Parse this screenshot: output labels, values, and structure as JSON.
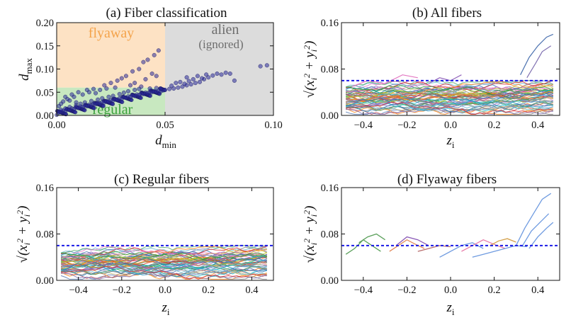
{
  "colors": {
    "flyaway_region": "#fde2c4",
    "regular_region": "#c8e8c0",
    "alien_region": "#dcdcdc",
    "flyaway_text": "#f4a34a",
    "regular_text": "#3ca03c",
    "alien_text": "#6e6e6e",
    "points": "#2a2a9a",
    "threshold_line": "#1a1ae6"
  },
  "chart_data": [
    {
      "id": "a",
      "type": "scatter",
      "title": "(a) Fiber classification",
      "xlabel": "d",
      "xlabel_sub": "min",
      "ylabel": "d",
      "ylabel_sub": "max",
      "xlim": [
        0.0,
        0.1
      ],
      "ylim": [
        0.0,
        0.2
      ],
      "xticks": [
        "0.00",
        "0.05",
        "0.10"
      ],
      "yticks": [
        "0.00",
        "0.05",
        "0.10",
        "0.15",
        "0.20"
      ],
      "regions": [
        {
          "name": "flyaway",
          "label": "flyaway",
          "x": [
            0.0,
            0.05
          ],
          "y": [
            0.06,
            0.2
          ]
        },
        {
          "name": "regular",
          "label": "regular",
          "x": [
            0.0,
            0.05
          ],
          "y": [
            0.0,
            0.06
          ]
        },
        {
          "name": "alien",
          "label": "alien",
          "sublabel": "(ignored)",
          "x": [
            0.05,
            0.1
          ],
          "y": [
            0.0,
            0.2
          ]
        }
      ],
      "points": [
        [
          0.001,
          0.006
        ],
        [
          0.002,
          0.008
        ],
        [
          0.003,
          0.01
        ],
        [
          0.004,
          0.009
        ],
        [
          0.005,
          0.013
        ],
        [
          0.006,
          0.012
        ],
        [
          0.007,
          0.015
        ],
        [
          0.008,
          0.014
        ],
        [
          0.009,
          0.017
        ],
        [
          0.01,
          0.016
        ],
        [
          0.011,
          0.019
        ],
        [
          0.012,
          0.018
        ],
        [
          0.013,
          0.021
        ],
        [
          0.014,
          0.02
        ],
        [
          0.015,
          0.023
        ],
        [
          0.016,
          0.022
        ],
        [
          0.017,
          0.025
        ],
        [
          0.018,
          0.024
        ],
        [
          0.019,
          0.027
        ],
        [
          0.02,
          0.026
        ],
        [
          0.021,
          0.029
        ],
        [
          0.022,
          0.028
        ],
        [
          0.023,
          0.031
        ],
        [
          0.024,
          0.03
        ],
        [
          0.025,
          0.033
        ],
        [
          0.026,
          0.032
        ],
        [
          0.027,
          0.035
        ],
        [
          0.028,
          0.034
        ],
        [
          0.029,
          0.037
        ],
        [
          0.03,
          0.036
        ],
        [
          0.031,
          0.039
        ],
        [
          0.032,
          0.038
        ],
        [
          0.033,
          0.041
        ],
        [
          0.034,
          0.04
        ],
        [
          0.035,
          0.043
        ],
        [
          0.036,
          0.042
        ],
        [
          0.037,
          0.045
        ],
        [
          0.038,
          0.044
        ],
        [
          0.039,
          0.047
        ],
        [
          0.04,
          0.046
        ],
        [
          0.041,
          0.049
        ],
        [
          0.042,
          0.048
        ],
        [
          0.043,
          0.051
        ],
        [
          0.044,
          0.05
        ],
        [
          0.045,
          0.052
        ],
        [
          0.046,
          0.051
        ],
        [
          0.047,
          0.053
        ],
        [
          0.048,
          0.052
        ],
        [
          0.049,
          0.054
        ],
        [
          0.05,
          0.055
        ],
        [
          0.052,
          0.057
        ],
        [
          0.054,
          0.058
        ],
        [
          0.056,
          0.06
        ],
        [
          0.058,
          0.062
        ],
        [
          0.06,
          0.065
        ],
        [
          0.062,
          0.067
        ],
        [
          0.064,
          0.07
        ],
        [
          0.066,
          0.072
        ],
        [
          0.068,
          0.078
        ],
        [
          0.07,
          0.082
        ],
        [
          0.072,
          0.086
        ],
        [
          0.074,
          0.09
        ],
        [
          0.076,
          0.088
        ],
        [
          0.078,
          0.092
        ],
        [
          0.08,
          0.09
        ],
        [
          0.082,
          0.075
        ],
        [
          0.003,
          0.03
        ],
        [
          0.005,
          0.035
        ],
        [
          0.008,
          0.04
        ],
        [
          0.012,
          0.045
        ],
        [
          0.015,
          0.05
        ],
        [
          0.018,
          0.048
        ],
        [
          0.02,
          0.055
        ],
        [
          0.022,
          0.065
        ],
        [
          0.025,
          0.07
        ],
        [
          0.028,
          0.075
        ],
        [
          0.03,
          0.08
        ],
        [
          0.032,
          0.085
        ],
        [
          0.035,
          0.095
        ],
        [
          0.038,
          0.1
        ],
        [
          0.04,
          0.115
        ],
        [
          0.042,
          0.12
        ],
        [
          0.045,
          0.13
        ],
        [
          0.047,
          0.14
        ],
        [
          0.046,
          0.085
        ],
        [
          0.044,
          0.09
        ],
        [
          0.041,
          0.078
        ],
        [
          0.036,
          0.07
        ],
        [
          0.034,
          0.065
        ],
        [
          0.039,
          0.062
        ],
        [
          0.097,
          0.108
        ],
        [
          0.094,
          0.106
        ],
        [
          0.06,
          0.082
        ],
        [
          0.065,
          0.085
        ],
        [
          0.069,
          0.088
        ],
        [
          0.057,
          0.072
        ],
        [
          0.053,
          0.064
        ],
        [
          0.055,
          0.07
        ],
        [
          0.059,
          0.068
        ],
        [
          0.061,
          0.074
        ],
        [
          0.063,
          0.078
        ],
        [
          0.067,
          0.08
        ],
        [
          0.002,
          0.012
        ],
        [
          0.004,
          0.015
        ],
        [
          0.006,
          0.018
        ],
        [
          0.009,
          0.022
        ],
        [
          0.011,
          0.025
        ],
        [
          0.013,
          0.028
        ],
        [
          0.016,
          0.031
        ],
        [
          0.019,
          0.034
        ],
        [
          0.021,
          0.037
        ],
        [
          0.024,
          0.04
        ],
        [
          0.026,
          0.042
        ],
        [
          0.029,
          0.046
        ],
        [
          0.031,
          0.049
        ],
        [
          0.033,
          0.052
        ],
        [
          0.036,
          0.055
        ],
        [
          0.038,
          0.057
        ],
        [
          0.043,
          0.058
        ],
        [
          0.046,
          0.059
        ],
        [
          0.048,
          0.058
        ],
        [
          0.027,
          0.06
        ],
        [
          0.023,
          0.058
        ],
        [
          0.017,
          0.057
        ],
        [
          0.014,
          0.055
        ],
        [
          0.01,
          0.05
        ],
        [
          0.007,
          0.045
        ],
        [
          0.001,
          0.02
        ],
        [
          0.002,
          0.025
        ],
        [
          0.004,
          0.04
        ],
        [
          0.006,
          0.032
        ],
        [
          0.009,
          0.028
        ]
      ]
    },
    {
      "id": "b",
      "type": "line",
      "title": "(b) All fibers",
      "xlabel": "z",
      "xlabel_sub": "i",
      "ylabel": "√(x_i^2 + y_i^2)",
      "xlim": [
        -0.5,
        0.5
      ],
      "ylim": [
        0.0,
        0.16
      ],
      "xticks": [
        "−0.4",
        "−0.2",
        "0.0",
        "0.2",
        "0.4"
      ],
      "yticks": [
        "0.00",
        "0.08",
        "0.16"
      ],
      "threshold": 0.06,
      "band": {
        "center": 0.03,
        "spread": 0.02
      },
      "series_count": 60,
      "flyaway_curves": [
        {
          "x": [
            0.32,
            0.36,
            0.4,
            0.44,
            0.47
          ],
          "y": [
            0.07,
            0.1,
            0.12,
            0.135,
            0.14
          ]
        },
        {
          "x": [
            0.35,
            0.39,
            0.42,
            0.46
          ],
          "y": [
            0.065,
            0.09,
            0.11,
            0.12
          ]
        },
        {
          "x": [
            -0.45,
            -0.38,
            -0.3,
            -0.22,
            -0.15
          ],
          "y": [
            0.05,
            0.06,
            0.055,
            0.07,
            0.065
          ]
        },
        {
          "x": [
            -0.1,
            -0.05,
            0.0,
            0.05
          ],
          "y": [
            0.055,
            0.065,
            0.06,
            0.07
          ]
        }
      ]
    },
    {
      "id": "c",
      "type": "line",
      "title": "(c) Regular fibers",
      "xlabel": "z",
      "xlabel_sub": "i",
      "ylabel": "√(x_i^2 + y_i^2)",
      "xlim": [
        -0.5,
        0.5
      ],
      "ylim": [
        0.0,
        0.16
      ],
      "xticks": [
        "−0.4",
        "−0.2",
        "0.0",
        "0.2",
        "0.4"
      ],
      "yticks": [
        "0.00",
        "0.08",
        "0.16"
      ],
      "threshold": 0.06,
      "band": {
        "center": 0.03,
        "spread": 0.018
      },
      "series_count": 60
    },
    {
      "id": "d",
      "type": "line",
      "title": "(d) Flyaway fibers",
      "xlabel": "z",
      "xlabel_sub": "i",
      "ylabel": "√(x_i^2 + y_i^2)",
      "xlim": [
        -0.5,
        0.5
      ],
      "ylim": [
        0.0,
        0.16
      ],
      "xticks": [
        "−0.4",
        "−0.2",
        "0.0",
        "0.2",
        "0.4"
      ],
      "yticks": [
        "0.00",
        "0.08",
        "0.16"
      ],
      "threshold": 0.06,
      "series": [
        {
          "name": "f1",
          "color": "#6f9be0",
          "x": [
            0.3,
            0.34,
            0.38,
            0.42,
            0.46
          ],
          "y": [
            0.06,
            0.09,
            0.115,
            0.14,
            0.15
          ]
        },
        {
          "name": "f2",
          "color": "#6f9be0",
          "x": [
            0.33,
            0.37,
            0.41,
            0.45
          ],
          "y": [
            0.06,
            0.085,
            0.1,
            0.115
          ]
        },
        {
          "name": "f3",
          "color": "#6f9be0",
          "x": [
            0.36,
            0.4,
            0.44,
            0.47
          ],
          "y": [
            0.055,
            0.075,
            0.09,
            0.1
          ]
        },
        {
          "name": "f4",
          "color": "#5ba05b",
          "x": [
            -0.48,
            -0.44,
            -0.4,
            -0.36,
            -0.32
          ],
          "y": [
            0.045,
            0.055,
            0.07,
            0.06,
            0.05
          ]
        },
        {
          "name": "f5",
          "color": "#e28a5a",
          "x": [
            -0.28,
            -0.24,
            -0.2,
            -0.16,
            -0.12
          ],
          "y": [
            0.05,
            0.06,
            0.07,
            0.062,
            0.055
          ]
        },
        {
          "name": "f6",
          "color": "#8b5bb8",
          "x": [
            -0.25,
            -0.2,
            -0.15,
            -0.1
          ],
          "y": [
            0.06,
            0.075,
            0.07,
            0.06
          ]
        },
        {
          "name": "f7",
          "color": "#6f9be0",
          "x": [
            -0.05,
            0.0,
            0.05,
            0.1,
            0.15
          ],
          "y": [
            0.04,
            0.05,
            0.06,
            0.065,
            0.055
          ]
        },
        {
          "name": "f8",
          "color": "#e87aa8",
          "x": [
            0.05,
            0.1,
            0.15,
            0.2,
            0.25
          ],
          "y": [
            0.05,
            0.06,
            0.07,
            0.062,
            0.055
          ]
        },
        {
          "name": "f9",
          "color": "#5ba05b",
          "x": [
            -0.42,
            -0.38,
            -0.34,
            -0.3
          ],
          "y": [
            0.065,
            0.075,
            0.08,
            0.07
          ]
        },
        {
          "name": "f10",
          "color": "#6f9be0",
          "x": [
            0.1,
            0.15,
            0.2,
            0.25,
            0.3,
            0.35
          ],
          "y": [
            0.04,
            0.045,
            0.05,
            0.055,
            0.06,
            0.058
          ]
        },
        {
          "name": "f11",
          "color": "#d4a04a",
          "x": [
            0.18,
            0.22,
            0.26,
            0.3
          ],
          "y": [
            0.06,
            0.068,
            0.072,
            0.066
          ]
        },
        {
          "name": "f12",
          "color": "#b86d6d",
          "x": [
            -0.15,
            -0.1,
            -0.05,
            0.0
          ],
          "y": [
            0.05,
            0.055,
            0.06,
            0.058
          ]
        }
      ]
    }
  ]
}
